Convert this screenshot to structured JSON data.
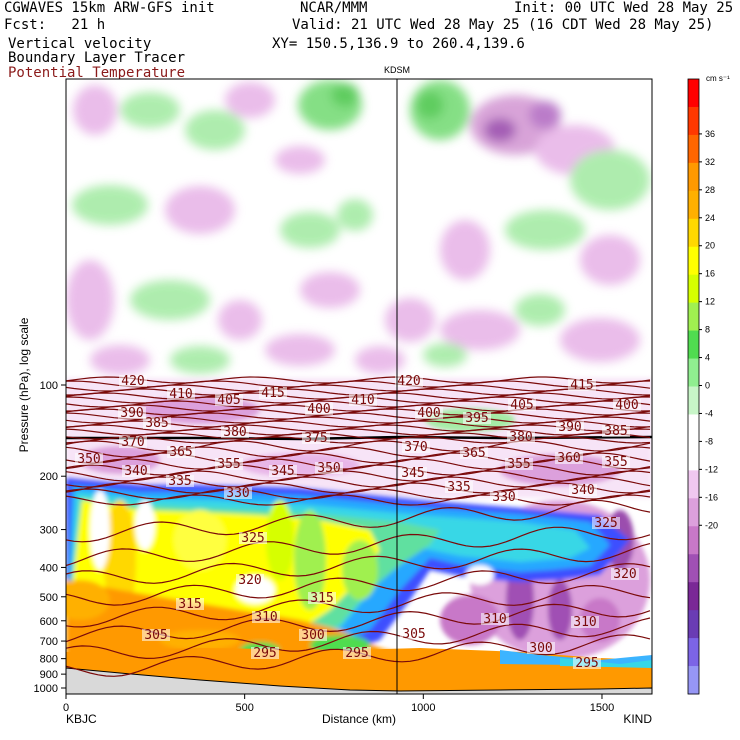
{
  "header": {
    "model": "CGWAVES 15km ARW-GFS init",
    "forecast": "Fcst:   21 h",
    "field1": "Vertical velocity",
    "field2": "Boundary Layer Tracer",
    "field3": "Potential Temperature",
    "org": "NCAR/MMM",
    "init": "Init: 00 UTC Wed 28 May 25",
    "valid": "Valid: 21 UTC Wed 28 May 25 (16 CDT Wed 28 May 25)",
    "xy": "XY= 150.5,136.9 to 260.4,139.6"
  },
  "colors": {
    "theta": "#7a0a0a",
    "accent_red": "#8b1a1a"
  },
  "chart_data": {
    "type": "heatmap",
    "xlabel": "Distance (km)",
    "ylabel": "Pressure (hPa), log scale",
    "x_ticks": [
      "0",
      "500",
      "1000",
      "1500"
    ],
    "x_tick_values": [
      0,
      500,
      1000,
      1500
    ],
    "xlim": [
      0,
      1640
    ],
    "y_scale": "log",
    "y_ticks": [
      "100",
      "200",
      "300",
      "400",
      "500",
      "600",
      "700",
      "800",
      "900",
      "1000"
    ],
    "y_tick_values": [
      100,
      200,
      300,
      400,
      500,
      600,
      700,
      800,
      900,
      1000
    ],
    "ylim": [
      1000,
      10
    ],
    "endpoints": {
      "left": "KBJC",
      "right": "KIND"
    },
    "marker": {
      "label": "KDSM",
      "distance_km": 930
    },
    "colorbar": {
      "unit": "cm s⁻¹",
      "tick_labels": [
        "36",
        "32",
        "28",
        "24",
        "20",
        "16",
        "12",
        "8",
        "4",
        "0",
        "-4",
        "-8",
        "-12",
        "-16",
        "-20"
      ],
      "colors": [
        "#ff0000",
        "#ff3800",
        "#ff6600",
        "#ff9900",
        "#ffb000",
        "#ffd800",
        "#ffff00",
        "#d6ff00",
        "#a0f050",
        "#50dc50",
        "#90ee90",
        "#c8f5c8",
        "#ffffff",
        "#ffffff",
        "#f0c8f0",
        "#dca0dc",
        "#c878c8",
        "#a050b4",
        "#7a2896",
        "#6a3cb4",
        "#7c64e6",
        "#9696f5"
      ]
    },
    "theta_labels": [
      {
        "t": "420",
        "x": 133,
        "y": 384
      },
      {
        "t": "420",
        "x": 409,
        "y": 384
      },
      {
        "t": "410",
        "x": 181,
        "y": 397
      },
      {
        "t": "415",
        "x": 273,
        "y": 396
      },
      {
        "t": "415",
        "x": 582,
        "y": 388
      },
      {
        "t": "405",
        "x": 229,
        "y": 403
      },
      {
        "t": "410",
        "x": 363,
        "y": 403
      },
      {
        "t": "405",
        "x": 522,
        "y": 408
      },
      {
        "t": "400",
        "x": 627,
        "y": 408
      },
      {
        "t": "390",
        "x": 132,
        "y": 416
      },
      {
        "t": "400",
        "x": 319,
        "y": 412
      },
      {
        "t": "400",
        "x": 429,
        "y": 416
      },
      {
        "t": "395",
        "x": 477,
        "y": 421
      },
      {
        "t": "385",
        "x": 157,
        "y": 426
      },
      {
        "t": "390",
        "x": 570,
        "y": 430
      },
      {
        "t": "385",
        "x": 616,
        "y": 434
      },
      {
        "t": "380",
        "x": 235,
        "y": 435
      },
      {
        "t": "375",
        "x": 316,
        "y": 441
      },
      {
        "t": "380",
        "x": 521,
        "y": 440
      },
      {
        "t": "370",
        "x": 133,
        "y": 445
      },
      {
        "t": "370",
        "x": 416,
        "y": 450
      },
      {
        "t": "365",
        "x": 181,
        "y": 455
      },
      {
        "t": "365",
        "x": 474,
        "y": 456
      },
      {
        "t": "350",
        "x": 89,
        "y": 462
      },
      {
        "t": "355",
        "x": 229,
        "y": 467
      },
      {
        "t": "355",
        "x": 519,
        "y": 467
      },
      {
        "t": "360",
        "x": 569,
        "y": 461
      },
      {
        "t": "355",
        "x": 616,
        "y": 465
      },
      {
        "t": "340",
        "x": 136,
        "y": 474
      },
      {
        "t": "345",
        "x": 283,
        "y": 474
      },
      {
        "t": "350",
        "x": 329,
        "y": 471
      },
      {
        "t": "345",
        "x": 413,
        "y": 476
      },
      {
        "t": "335",
        "x": 180,
        "y": 484
      },
      {
        "t": "335",
        "x": 459,
        "y": 490
      },
      {
        "t": "340",
        "x": 583,
        "y": 493
      },
      {
        "t": "330",
        "x": 238,
        "y": 496
      },
      {
        "t": "330",
        "x": 504,
        "y": 500
      },
      {
        "t": "325",
        "x": 253,
        "y": 541
      },
      {
        "t": "325",
        "x": 606,
        "y": 526
      },
      {
        "t": "320",
        "x": 250,
        "y": 583
      },
      {
        "t": "320",
        "x": 625,
        "y": 577
      },
      {
        "t": "315",
        "x": 190,
        "y": 607
      },
      {
        "t": "315",
        "x": 322,
        "y": 601
      },
      {
        "t": "310",
        "x": 266,
        "y": 620
      },
      {
        "t": "310",
        "x": 495,
        "y": 622
      },
      {
        "t": "310",
        "x": 585,
        "y": 625
      },
      {
        "t": "305",
        "x": 156,
        "y": 638
      },
      {
        "t": "305",
        "x": 414,
        "y": 637
      },
      {
        "t": "300",
        "x": 313,
        "y": 638
      },
      {
        "t": "300",
        "x": 541,
        "y": 651
      },
      {
        "t": "295",
        "x": 265,
        "y": 656
      },
      {
        "t": "295",
        "x": 357,
        "y": 656
      },
      {
        "t": "295",
        "x": 587,
        "y": 666
      }
    ]
  }
}
